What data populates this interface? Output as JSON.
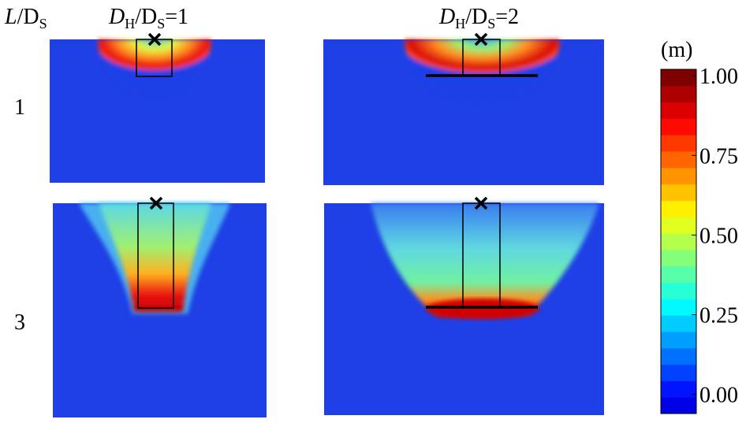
{
  "row_labels": {
    "header": {
      "parts": [
        "L",
        "/D",
        "S"
      ]
    },
    "rows": [
      "1",
      "3"
    ]
  },
  "column_labels": [
    {
      "parts": [
        "D",
        "H",
        "/D",
        "S",
        "=1"
      ]
    },
    {
      "parts": [
        "D",
        "H",
        "/D",
        "S",
        "=2"
      ]
    }
  ],
  "colorbar": {
    "unit": "(m)",
    "lim": [
      -0.06,
      1.02
    ],
    "ticks": [
      {
        "value": 1,
        "label": "1.00"
      },
      {
        "value": 0.75,
        "label": "0.75"
      },
      {
        "value": 0.5,
        "label": "0.50"
      },
      {
        "value": 0.25,
        "label": "0.25"
      },
      {
        "value": 0,
        "label": "0.00"
      }
    ]
  }
}
